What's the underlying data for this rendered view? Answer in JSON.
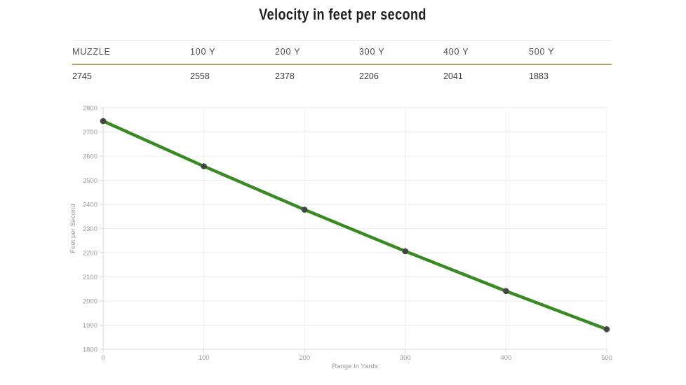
{
  "page": {
    "title": "Velocity in feet per second"
  },
  "table": {
    "headers": [
      "MUZZLE",
      "100 Y",
      "200 Y",
      "300 Y",
      "400 Y",
      "500 Y"
    ],
    "values": [
      "2745",
      "2558",
      "2378",
      "2206",
      "2041",
      "1883"
    ]
  },
  "chart_data": {
    "type": "line",
    "x": [
      0,
      100,
      200,
      300,
      400,
      500
    ],
    "values": [
      2745,
      2558,
      2378,
      2206,
      2041,
      1883
    ],
    "title": "Velocity in feet per second",
    "xlabel": "Range In Yards",
    "ylabel": "Feet per Second",
    "xlim": [
      0,
      500
    ],
    "ylim": [
      1800,
      2800
    ],
    "x_tick_step": 100,
    "y_tick_step": 100,
    "x_tick_labels": [
      "0",
      "100",
      "200",
      "300",
      "400",
      "500"
    ],
    "y_tick_labels": [
      "1800",
      "1900",
      "2000",
      "2100",
      "2200",
      "2300",
      "2400",
      "2500",
      "2600",
      "2700",
      "2800"
    ],
    "grid": true,
    "legend": "none"
  },
  "colors": {
    "line": "#3a8a24",
    "point": "#41463f",
    "grid_horizontal": "#ececec",
    "grid_vertical": "#f1f1f1",
    "axis": "#d9d9d9",
    "table_accent": "#b1a167"
  }
}
